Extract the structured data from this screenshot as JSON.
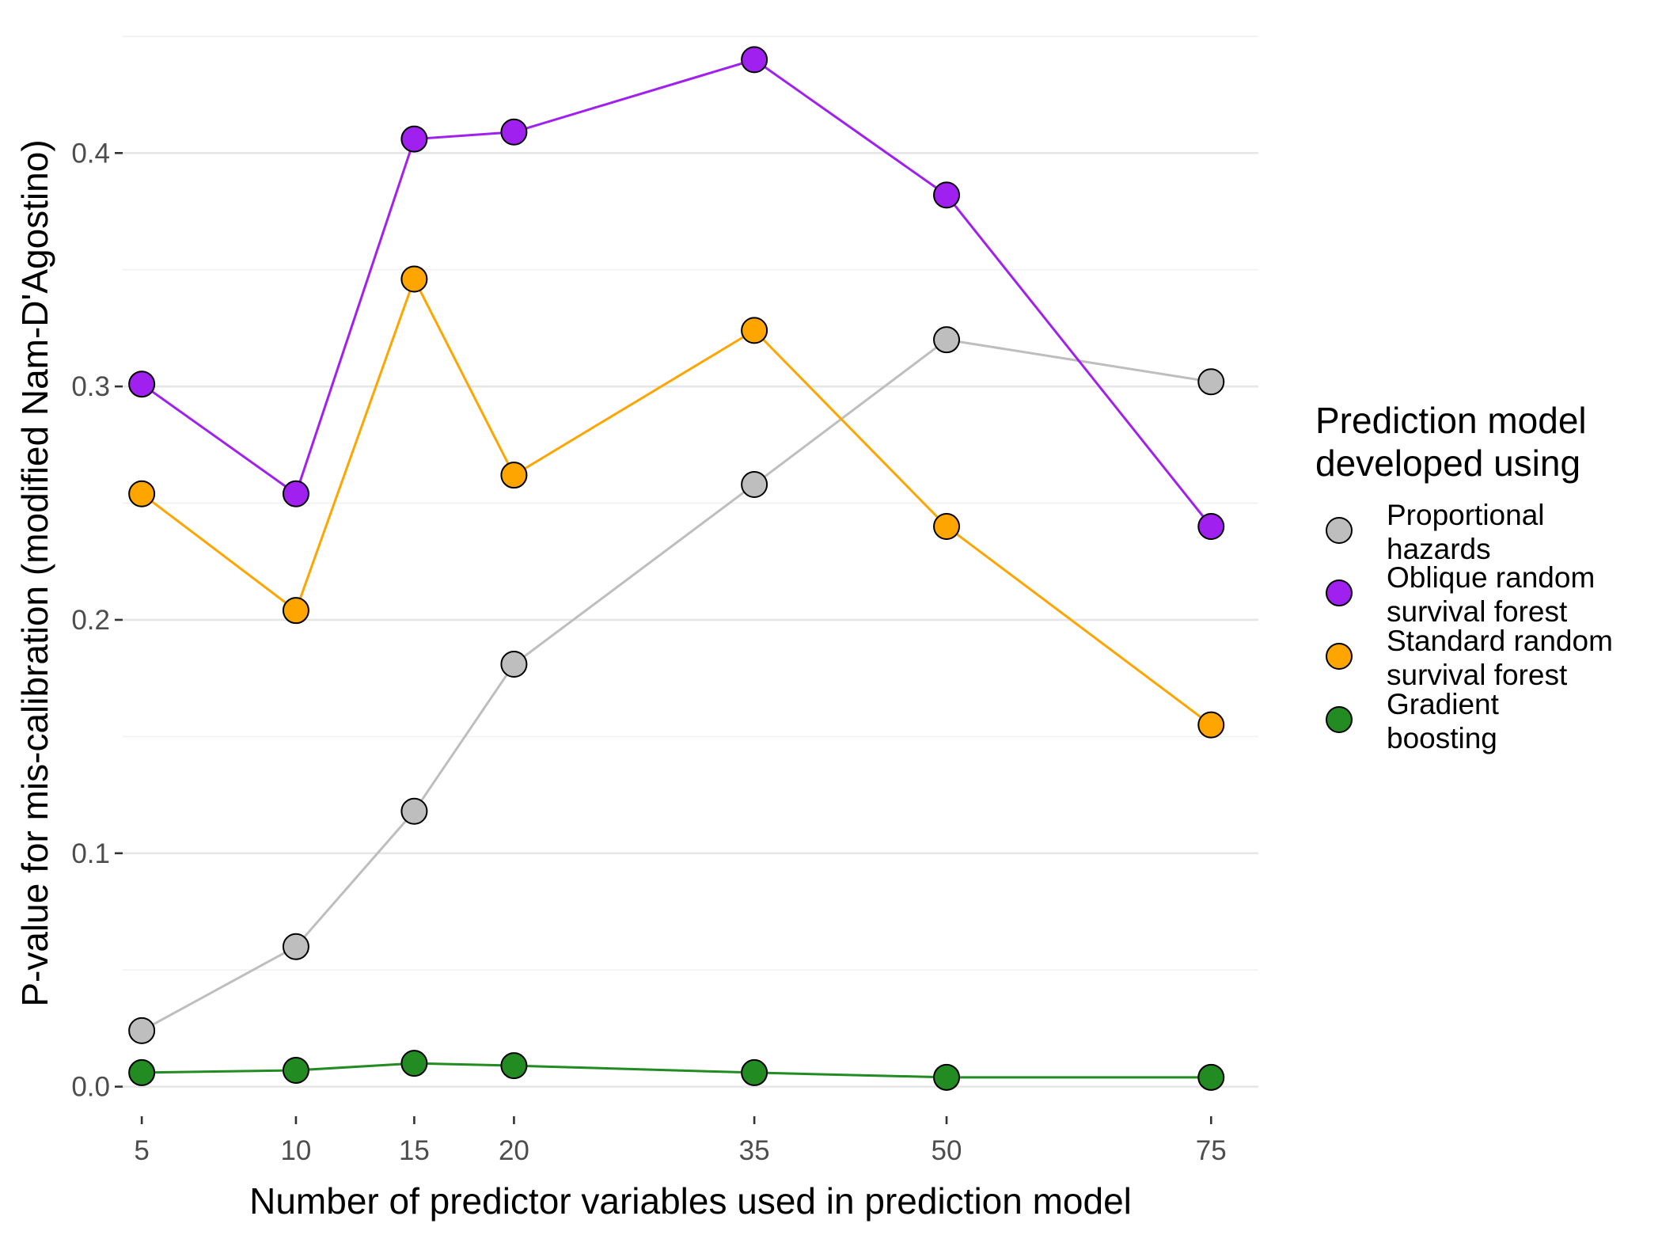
{
  "chart_data": {
    "type": "line",
    "title": "",
    "xlabel": "Number of predictor variables used in prediction model",
    "ylabel": "P-value for mis-calibration (modified Nam-D'Agostino)",
    "x": [
      5,
      10,
      15,
      20,
      35,
      50,
      75
    ],
    "x_tick_labels": [
      "5",
      "10",
      "15",
      "20",
      "35",
      "50",
      "75"
    ],
    "x_scale": "sqrt",
    "xlim": [
      4.5,
      80
    ],
    "ylim": [
      -0.012,
      0.452
    ],
    "y_ticks": [
      0.0,
      0.1,
      0.2,
      0.3,
      0.4
    ],
    "y_tick_labels": [
      "0.0",
      "0.1",
      "0.2",
      "0.3",
      "0.4"
    ],
    "grid": true,
    "legend": {
      "title_lines": [
        "Prediction model",
        "developed using"
      ],
      "position": "right"
    },
    "series": [
      {
        "name": "Proportional hazards",
        "label_lines": [
          "Proportional",
          "hazards"
        ],
        "color": "#bebebe",
        "values": [
          0.024,
          0.06,
          0.118,
          0.181,
          0.258,
          0.32,
          0.302
        ]
      },
      {
        "name": "Oblique random survival forest",
        "label_lines": [
          "Oblique random",
          "survival forest"
        ],
        "color": "#a020f0",
        "values": [
          0.301,
          0.254,
          0.406,
          0.409,
          0.44,
          0.382,
          0.24
        ]
      },
      {
        "name": "Standard random survival forest",
        "label_lines": [
          "Standard random",
          "survival forest"
        ],
        "color": "#ffa500",
        "values": [
          0.254,
          0.204,
          0.346,
          0.262,
          0.324,
          0.24,
          0.155
        ]
      },
      {
        "name": "Gradient boosting",
        "label_lines": [
          "Gradient",
          "boosting"
        ],
        "color": "#228b22",
        "values": [
          0.006,
          0.007,
          0.01,
          0.009,
          0.006,
          0.004,
          0.004
        ]
      }
    ]
  }
}
